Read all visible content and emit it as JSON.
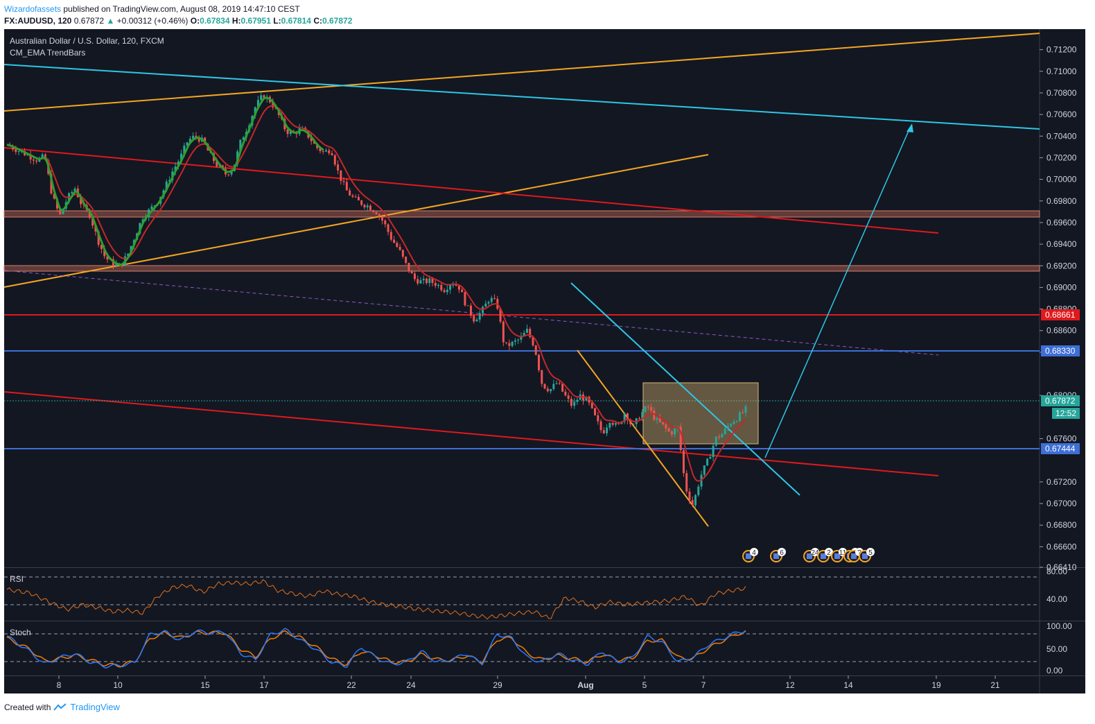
{
  "header": {
    "author": "Wizardofassets",
    "publish_text": "published on TradingView.com, August 08, 2019 14:47:10 CEST"
  },
  "symbol_bar": {
    "symbol": "FX:AUDUSD, 120",
    "last": "0.67872",
    "change": "+0.00312 (+0.46%)",
    "o_label": "O:",
    "o": "0.67834",
    "h_label": "H:",
    "h": "0.67951",
    "l_label": "L:",
    "l": "0.67814",
    "c_label": "C:",
    "c": "0.67872"
  },
  "main_pane": {
    "title": "Australian Dollar / U.S. Dollar, 120, FXCM",
    "indicator": "CM_EMA TrendBars"
  },
  "price_axis": {
    "ticks": [
      "0.71200",
      "0.71000",
      "0.70800",
      "0.70600",
      "0.70400",
      "0.70200",
      "0.70000",
      "0.69800",
      "0.69600",
      "0.69400",
      "0.69200",
      "0.69000",
      "0.68800",
      "0.68600",
      "0.68400",
      "0.68000",
      "0.67600",
      "0.67200",
      "0.67000",
      "0.66800",
      "0.66600",
      "0.66410"
    ],
    "badges": {
      "red": "0.68661",
      "blue_upper": "0.68330",
      "last": "0.67872",
      "countdown": "12:52",
      "blue_lower": "0.67444"
    }
  },
  "time_axis": {
    "labels": [
      {
        "text": "8",
        "bold": false
      },
      {
        "text": "10",
        "bold": false
      },
      {
        "text": "15",
        "bold": false
      },
      {
        "text": "17",
        "bold": false
      },
      {
        "text": "22",
        "bold": false
      },
      {
        "text": "24",
        "bold": false
      },
      {
        "text": "29",
        "bold": false
      },
      {
        "text": "Aug",
        "bold": true
      },
      {
        "text": "5",
        "bold": false
      },
      {
        "text": "7",
        "bold": false
      },
      {
        "text": "12",
        "bold": false
      },
      {
        "text": "14",
        "bold": false
      },
      {
        "text": "19",
        "bold": false
      },
      {
        "text": "21",
        "bold": false
      }
    ]
  },
  "events": [
    "4",
    "6",
    "24",
    "2",
    "11",
    "8",
    "?",
    "5"
  ],
  "rsi_pane": {
    "title": "RSI",
    "ticks": [
      "80.00",
      "40.00"
    ]
  },
  "stoch_pane": {
    "title": "Stoch",
    "ticks": [
      "100.00",
      "50.00",
      "0.00"
    ]
  },
  "footer": {
    "created_with": "Created with",
    "brand": "TradingView"
  },
  "colors": {
    "background": "#131722",
    "up": "#26a69a",
    "down": "#ef5350",
    "ema_red": "#c62828",
    "ema_green": "#2e9e2e",
    "orange": "#f5a623",
    "cyan": "#2ec7e6",
    "blue": "#3d6fd6",
    "red_line": "#e0191c",
    "rsi": "#e0701c",
    "stoch_k": "#2979ff",
    "stoch_d": "#f57c00"
  },
  "chart_data": {
    "type": "candlestick",
    "title": "Australian Dollar / U.S. Dollar, 120, FXCM",
    "timeframe": "120",
    "ylim": [
      0.6641,
      0.7139
    ],
    "horizontal_levels": [
      0.68661,
      0.6833,
      0.67444
    ],
    "zones": [
      [
        0.6958,
        0.6966
      ],
      [
        0.6906,
        0.6914
      ]
    ],
    "last_price": 0.67872,
    "price_path": [
      [
        0,
        0.7032
      ],
      [
        2,
        0.7025
      ],
      [
        4,
        0.7018
      ],
      [
        5,
        0.7021
      ],
      [
        6,
        0.6985
      ],
      [
        7,
        0.6966
      ],
      [
        8,
        0.6982
      ],
      [
        9,
        0.6992
      ],
      [
        10,
        0.6975
      ],
      [
        11,
        0.6967
      ],
      [
        12,
        0.6945
      ],
      [
        13,
        0.6928
      ],
      [
        14,
        0.6922
      ],
      [
        15,
        0.692
      ],
      [
        16,
        0.693
      ],
      [
        17,
        0.6948
      ],
      [
        18,
        0.6965
      ],
      [
        19,
        0.6972
      ],
      [
        20,
        0.698
      ],
      [
        21,
        0.6993
      ],
      [
        22,
        0.7008
      ],
      [
        23,
        0.702
      ],
      [
        24,
        0.7036
      ],
      [
        25,
        0.704
      ],
      [
        26,
        0.7035
      ],
      [
        27,
        0.7022
      ],
      [
        28,
        0.7012
      ],
      [
        29,
        0.7005
      ],
      [
        30,
        0.701
      ],
      [
        31,
        0.7035
      ],
      [
        32,
        0.705
      ],
      [
        33,
        0.7068
      ],
      [
        34,
        0.7078
      ],
      [
        35,
        0.7072
      ],
      [
        36,
        0.706
      ],
      [
        37,
        0.7045
      ],
      [
        38,
        0.7042
      ],
      [
        39,
        0.7047
      ],
      [
        40,
        0.704
      ],
      [
        41,
        0.703
      ],
      [
        42,
        0.7025
      ],
      [
        43,
        0.7028
      ],
      [
        44,
        0.7005
      ],
      [
        45,
        0.699
      ],
      [
        46,
        0.6982
      ],
      [
        47,
        0.6978
      ],
      [
        48,
        0.6975
      ],
      [
        49,
        0.697
      ],
      [
        50,
        0.696
      ],
      [
        51,
        0.6945
      ],
      [
        52,
        0.6935
      ],
      [
        53,
        0.692
      ],
      [
        54,
        0.6908
      ],
      [
        55,
        0.6905
      ],
      [
        56,
        0.6906
      ],
      [
        57,
        0.6903
      ],
      [
        58,
        0.6898
      ],
      [
        59,
        0.6905
      ],
      [
        60,
        0.69
      ],
      [
        61,
        0.6882
      ],
      [
        62,
        0.687
      ],
      [
        63,
        0.6878
      ],
      [
        64,
        0.689
      ],
      [
        65,
        0.6885
      ],
      [
        66,
        0.6845
      ],
      [
        67,
        0.6848
      ],
      [
        68,
        0.6852
      ],
      [
        69,
        0.686
      ],
      [
        70,
        0.6845
      ],
      [
        71,
        0.681
      ],
      [
        72,
        0.6805
      ],
      [
        73,
        0.6812
      ],
      [
        74,
        0.68
      ],
      [
        75,
        0.679
      ],
      [
        76,
        0.68
      ],
      [
        77,
        0.6795
      ],
      [
        78,
        0.678
      ],
      [
        79,
        0.6765
      ],
      [
        80,
        0.6778
      ],
      [
        81,
        0.677
      ],
      [
        82,
        0.6785
      ],
      [
        83,
        0.677
      ],
      [
        84,
        0.6782
      ],
      [
        85,
        0.679
      ],
      [
        86,
        0.6778
      ],
      [
        87,
        0.6772
      ],
      [
        88,
        0.6765
      ],
      [
        89,
        0.677
      ],
      [
        90,
        0.6715
      ],
      [
        91,
        0.6698
      ],
      [
        92,
        0.6725
      ],
      [
        93,
        0.674
      ],
      [
        94,
        0.676
      ],
      [
        95,
        0.6765
      ],
      [
        96,
        0.6775
      ],
      [
        97,
        0.678
      ],
      [
        98,
        0.6787
      ]
    ],
    "rsi_path": [
      [
        0,
        62
      ],
      [
        3,
        57
      ],
      [
        6,
        42
      ],
      [
        8,
        33
      ],
      [
        10,
        40
      ],
      [
        12,
        36
      ],
      [
        14,
        30
      ],
      [
        16,
        32
      ],
      [
        18,
        28
      ],
      [
        20,
        52
      ],
      [
        22,
        65
      ],
      [
        24,
        68
      ],
      [
        26,
        58
      ],
      [
        28,
        70
      ],
      [
        30,
        72
      ],
      [
        32,
        70
      ],
      [
        34,
        74
      ],
      [
        36,
        60
      ],
      [
        38,
        56
      ],
      [
        40,
        52
      ],
      [
        42,
        60
      ],
      [
        44,
        55
      ],
      [
        46,
        52
      ],
      [
        48,
        45
      ],
      [
        50,
        40
      ],
      [
        52,
        38
      ],
      [
        54,
        34
      ],
      [
        56,
        32
      ],
      [
        58,
        30
      ],
      [
        60,
        28
      ],
      [
        62,
        24
      ],
      [
        64,
        22
      ],
      [
        66,
        25
      ],
      [
        68,
        28
      ],
      [
        70,
        30
      ],
      [
        72,
        20
      ],
      [
        74,
        50
      ],
      [
        76,
        45
      ],
      [
        78,
        36
      ],
      [
        80,
        44
      ],
      [
        82,
        40
      ],
      [
        84,
        42
      ],
      [
        86,
        44
      ],
      [
        88,
        46
      ],
      [
        90,
        52
      ],
      [
        92,
        38
      ],
      [
        94,
        56
      ],
      [
        96,
        60
      ],
      [
        98,
        64
      ]
    ],
    "stoch_k_path": [
      [
        0,
        80
      ],
      [
        3,
        45
      ],
      [
        5,
        15
      ],
      [
        7,
        30
      ],
      [
        9,
        40
      ],
      [
        11,
        20
      ],
      [
        13,
        10
      ],
      [
        15,
        12
      ],
      [
        17,
        18
      ],
      [
        19,
        85
      ],
      [
        21,
        90
      ],
      [
        23,
        70
      ],
      [
        25,
        92
      ],
      [
        27,
        88
      ],
      [
        29,
        90
      ],
      [
        31,
        40
      ],
      [
        33,
        25
      ],
      [
        35,
        85
      ],
      [
        37,
        95
      ],
      [
        39,
        70
      ],
      [
        41,
        50
      ],
      [
        43,
        20
      ],
      [
        45,
        10
      ],
      [
        47,
        55
      ],
      [
        49,
        30
      ],
      [
        51,
        15
      ],
      [
        53,
        20
      ],
      [
        55,
        45
      ],
      [
        57,
        20
      ],
      [
        59,
        25
      ],
      [
        61,
        40
      ],
      [
        63,
        15
      ],
      [
        65,
        85
      ],
      [
        67,
        75
      ],
      [
        69,
        30
      ],
      [
        71,
        20
      ],
      [
        73,
        40
      ],
      [
        75,
        25
      ],
      [
        77,
        15
      ],
      [
        79,
        45
      ],
      [
        81,
        20
      ],
      [
        83,
        30
      ],
      [
        85,
        80
      ],
      [
        87,
        65
      ],
      [
        89,
        20
      ],
      [
        91,
        30
      ],
      [
        93,
        60
      ],
      [
        95,
        75
      ],
      [
        97,
        90
      ],
      [
        98,
        92
      ]
    ],
    "stoch_d_path": [
      [
        0,
        75
      ],
      [
        3,
        50
      ],
      [
        5,
        22
      ],
      [
        7,
        28
      ],
      [
        9,
        36
      ],
      [
        11,
        25
      ],
      [
        13,
        14
      ],
      [
        15,
        12
      ],
      [
        17,
        22
      ],
      [
        19,
        75
      ],
      [
        21,
        88
      ],
      [
        23,
        76
      ],
      [
        25,
        88
      ],
      [
        27,
        88
      ],
      [
        29,
        88
      ],
      [
        31,
        50
      ],
      [
        33,
        32
      ],
      [
        35,
        75
      ],
      [
        37,
        90
      ],
      [
        39,
        76
      ],
      [
        41,
        55
      ],
      [
        43,
        28
      ],
      [
        45,
        14
      ],
      [
        47,
        45
      ],
      [
        49,
        35
      ],
      [
        51,
        20
      ],
      [
        53,
        20
      ],
      [
        55,
        38
      ],
      [
        57,
        26
      ],
      [
        59,
        24
      ],
      [
        61,
        35
      ],
      [
        63,
        20
      ],
      [
        65,
        72
      ],
      [
        67,
        76
      ],
      [
        69,
        40
      ],
      [
        71,
        25
      ],
      [
        73,
        35
      ],
      [
        75,
        28
      ],
      [
        77,
        20
      ],
      [
        79,
        38
      ],
      [
        81,
        25
      ],
      [
        83,
        28
      ],
      [
        85,
        70
      ],
      [
        87,
        70
      ],
      [
        89,
        30
      ],
      [
        91,
        28
      ],
      [
        93,
        52
      ],
      [
        95,
        70
      ],
      [
        97,
        86
      ],
      [
        98,
        90
      ]
    ]
  }
}
